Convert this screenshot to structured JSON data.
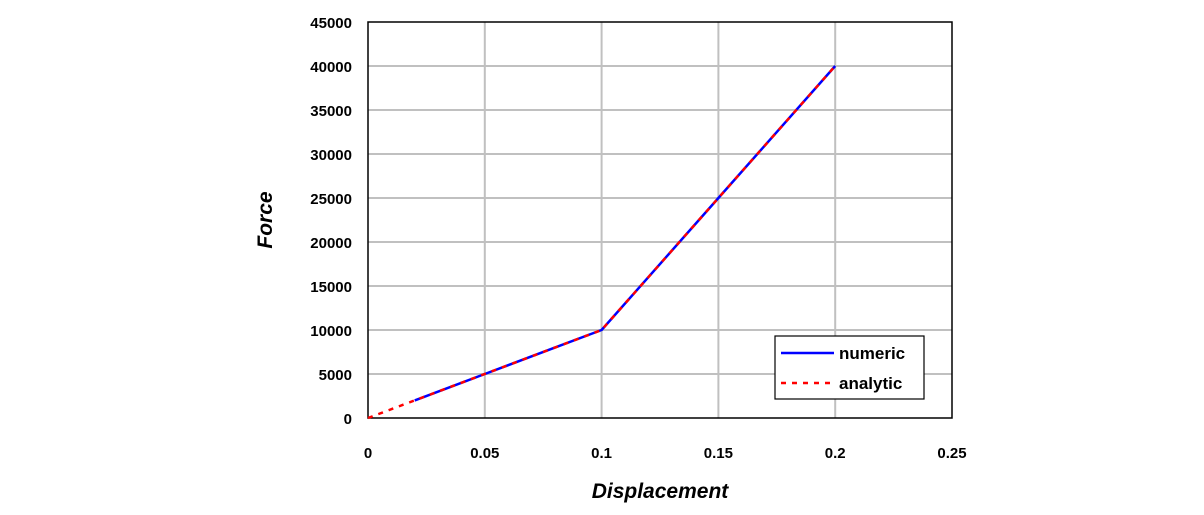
{
  "chart_data": {
    "type": "line",
    "title": "",
    "xlabel": "Displacement",
    "ylabel": "Force",
    "xlim": [
      0,
      0.25
    ],
    "ylim": [
      0,
      45000
    ],
    "x_ticks": [
      0,
      0.05,
      0.1,
      0.15,
      0.2,
      0.25
    ],
    "x_tick_labels": [
      "0",
      "0.05",
      "0.1",
      "0.15",
      "0.2",
      "0.25"
    ],
    "y_ticks": [
      0,
      5000,
      10000,
      15000,
      20000,
      25000,
      30000,
      35000,
      40000,
      45000
    ],
    "y_tick_labels": [
      "0",
      "5000",
      "10000",
      "15000",
      "20000",
      "25000",
      "30000",
      "35000",
      "40000",
      "45000"
    ],
    "grid": true,
    "legend_position": "bottom-right",
    "series": [
      {
        "name": "numeric",
        "color": "#0000ff",
        "style": "solid",
        "x": [
          0.02,
          0.05,
          0.08,
          0.1,
          0.15,
          0.2
        ],
        "y": [
          2000,
          5000,
          8000,
          10000,
          25000,
          40000
        ]
      },
      {
        "name": "analytic",
        "color": "#ff0000",
        "style": "dashed",
        "x": [
          0,
          0.1,
          0.2
        ],
        "y": [
          0,
          10000,
          40000
        ]
      }
    ]
  }
}
